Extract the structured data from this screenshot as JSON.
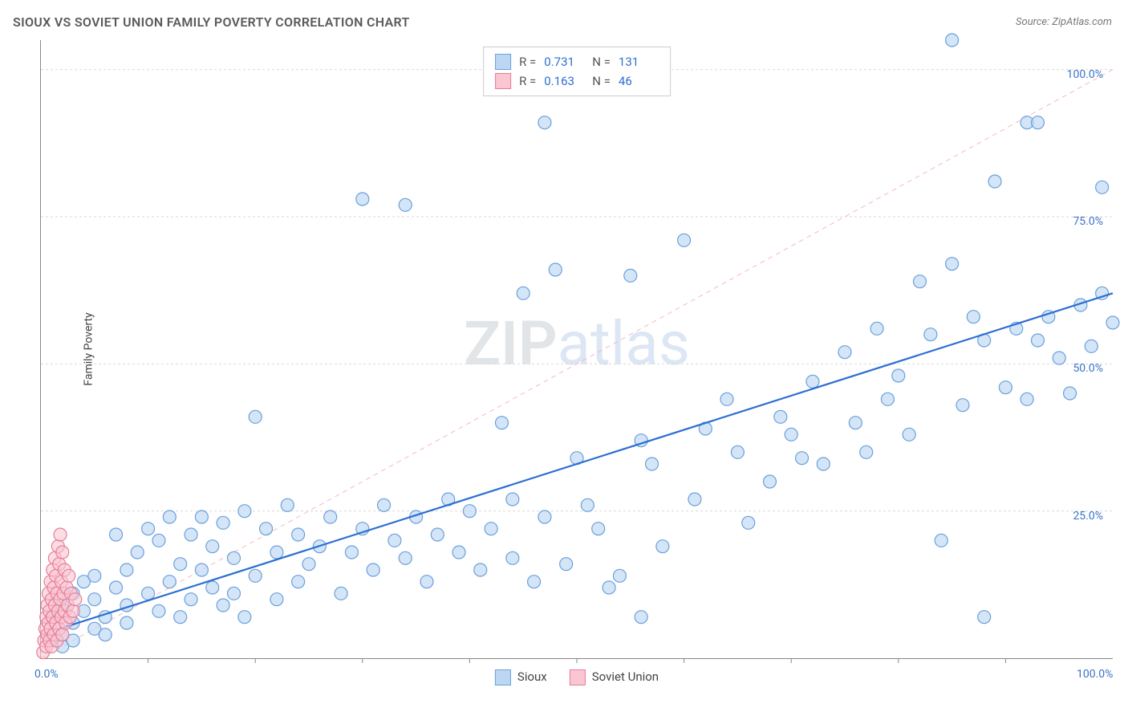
{
  "title": "SIOUX VS SOVIET UNION FAMILY POVERTY CORRELATION CHART",
  "source": "Source: ZipAtlas.com",
  "ylabel": "Family Poverty",
  "watermark_zip": "ZIP",
  "watermark_atlas": "atlas",
  "chart": {
    "type": "scatter",
    "xlim": [
      0,
      100
    ],
    "ylim": [
      0,
      105
    ],
    "x_ticks_minor": [
      10,
      20,
      30,
      40,
      50,
      60,
      70,
      80,
      90
    ],
    "x_ticks_labels": [
      {
        "pos": 0,
        "label": "0.0%"
      },
      {
        "pos": 100,
        "label": "100.0%"
      }
    ],
    "y_gridlines": [
      25,
      50,
      75,
      100
    ],
    "y_ticks_labels": [
      {
        "pos": 25,
        "label": "25.0%"
      },
      {
        "pos": 50,
        "label": "50.0%"
      },
      {
        "pos": 75,
        "label": "75.0%"
      },
      {
        "pos": 100,
        "label": "100.0%"
      }
    ],
    "grid_color": "#d9d9d9",
    "grid_dash": "3,3",
    "diag_color": "#f6b8c2",
    "diag_dash": "6,5",
    "marker_radius": 8,
    "marker_stroke": 1.2,
    "series": [
      {
        "name": "Sioux",
        "fill": "#bcd7f3",
        "stroke": "#6aa0db",
        "fill_opacity": 0.65,
        "R": "0.731",
        "N": "131",
        "regression": {
          "x1": 0,
          "y1": 4,
          "x2": 100,
          "y2": 62,
          "color": "#2c6fd2",
          "width": 2.2
        },
        "points": [
          [
            1,
            3
          ],
          [
            1,
            7
          ],
          [
            2,
            4
          ],
          [
            2,
            9
          ],
          [
            2,
            2
          ],
          [
            3,
            6
          ],
          [
            3,
            11
          ],
          [
            3,
            3
          ],
          [
            4,
            8
          ],
          [
            4,
            13
          ],
          [
            5,
            5
          ],
          [
            5,
            10
          ],
          [
            5,
            14
          ],
          [
            6,
            7
          ],
          [
            6,
            4
          ],
          [
            7,
            12
          ],
          [
            7,
            21
          ],
          [
            8,
            9
          ],
          [
            8,
            6
          ],
          [
            8,
            15
          ],
          [
            9,
            18
          ],
          [
            10,
            11
          ],
          [
            10,
            22
          ],
          [
            11,
            8
          ],
          [
            11,
            20
          ],
          [
            12,
            13
          ],
          [
            12,
            24
          ],
          [
            13,
            16
          ],
          [
            13,
            7
          ],
          [
            14,
            21
          ],
          [
            14,
            10
          ],
          [
            15,
            15
          ],
          [
            15,
            24
          ],
          [
            16,
            12
          ],
          [
            16,
            19
          ],
          [
            17,
            9
          ],
          [
            17,
            23
          ],
          [
            18,
            17
          ],
          [
            18,
            11
          ],
          [
            19,
            25
          ],
          [
            19,
            7
          ],
          [
            20,
            41
          ],
          [
            20,
            14
          ],
          [
            21,
            22
          ],
          [
            22,
            10
          ],
          [
            22,
            18
          ],
          [
            23,
            26
          ],
          [
            24,
            13
          ],
          [
            24,
            21
          ],
          [
            25,
            16
          ],
          [
            26,
            19
          ],
          [
            27,
            24
          ],
          [
            28,
            11
          ],
          [
            29,
            18
          ],
          [
            30,
            78
          ],
          [
            30,
            22
          ],
          [
            31,
            15
          ],
          [
            32,
            26
          ],
          [
            33,
            20
          ],
          [
            34,
            77
          ],
          [
            34,
            17
          ],
          [
            35,
            24
          ],
          [
            36,
            13
          ],
          [
            37,
            21
          ],
          [
            38,
            27
          ],
          [
            39,
            18
          ],
          [
            40,
            25
          ],
          [
            41,
            15
          ],
          [
            42,
            22
          ],
          [
            43,
            40
          ],
          [
            44,
            17
          ],
          [
            44,
            27
          ],
          [
            45,
            62
          ],
          [
            46,
            13
          ],
          [
            47,
            91
          ],
          [
            47,
            24
          ],
          [
            48,
            66
          ],
          [
            49,
            16
          ],
          [
            50,
            34
          ],
          [
            51,
            26
          ],
          [
            52,
            22
          ],
          [
            53,
            12
          ],
          [
            54,
            14
          ],
          [
            55,
            65
          ],
          [
            56,
            37
          ],
          [
            56,
            7
          ],
          [
            57,
            33
          ],
          [
            58,
            19
          ],
          [
            60,
            71
          ],
          [
            61,
            27
          ],
          [
            62,
            39
          ],
          [
            64,
            44
          ],
          [
            65,
            35
          ],
          [
            66,
            23
          ],
          [
            68,
            30
          ],
          [
            69,
            41
          ],
          [
            70,
            38
          ],
          [
            71,
            34
          ],
          [
            72,
            47
          ],
          [
            73,
            33
          ],
          [
            75,
            52
          ],
          [
            76,
            40
          ],
          [
            77,
            35
          ],
          [
            78,
            56
          ],
          [
            79,
            44
          ],
          [
            80,
            48
          ],
          [
            81,
            38
          ],
          [
            82,
            64
          ],
          [
            83,
            55
          ],
          [
            84,
            20
          ],
          [
            85,
            105
          ],
          [
            85,
            67
          ],
          [
            86,
            43
          ],
          [
            87,
            58
          ],
          [
            88,
            7
          ],
          [
            88,
            54
          ],
          [
            89,
            81
          ],
          [
            90,
            46
          ],
          [
            91,
            56
          ],
          [
            92,
            44
          ],
          [
            92,
            91
          ],
          [
            93,
            91
          ],
          [
            93,
            54
          ],
          [
            94,
            58
          ],
          [
            95,
            51
          ],
          [
            96,
            45
          ],
          [
            97,
            60
          ],
          [
            98,
            53
          ],
          [
            99,
            80
          ],
          [
            99,
            62
          ],
          [
            100,
            57
          ]
        ]
      },
      {
        "name": "Soviet Union",
        "fill": "#f9c6d2",
        "stroke": "#e87d9a",
        "fill_opacity": 0.6,
        "R": "0.163",
        "N": "46",
        "regression": null,
        "points": [
          [
            0.2,
            1
          ],
          [
            0.3,
            3
          ],
          [
            0.4,
            5
          ],
          [
            0.5,
            2
          ],
          [
            0.5,
            7
          ],
          [
            0.6,
            4
          ],
          [
            0.6,
            9
          ],
          [
            0.7,
            6
          ],
          [
            0.7,
            11
          ],
          [
            0.8,
            3
          ],
          [
            0.8,
            8
          ],
          [
            0.9,
            5
          ],
          [
            0.9,
            13
          ],
          [
            1.0,
            2
          ],
          [
            1.0,
            10
          ],
          [
            1.1,
            7
          ],
          [
            1.1,
            15
          ],
          [
            1.2,
            4
          ],
          [
            1.2,
            12
          ],
          [
            1.3,
            9
          ],
          [
            1.3,
            17
          ],
          [
            1.4,
            6
          ],
          [
            1.4,
            14
          ],
          [
            1.5,
            3
          ],
          [
            1.5,
            11
          ],
          [
            1.6,
            8
          ],
          [
            1.6,
            19
          ],
          [
            1.7,
            5
          ],
          [
            1.7,
            16
          ],
          [
            1.8,
            10
          ],
          [
            1.8,
            21
          ],
          [
            1.9,
            7
          ],
          [
            1.9,
            13
          ],
          [
            2.0,
            4
          ],
          [
            2.0,
            18
          ],
          [
            2.1,
            11
          ],
          [
            2.2,
            8
          ],
          [
            2.2,
            15
          ],
          [
            2.3,
            6
          ],
          [
            2.4,
            12
          ],
          [
            2.5,
            9
          ],
          [
            2.6,
            14
          ],
          [
            2.7,
            7
          ],
          [
            2.8,
            11
          ],
          [
            3.0,
            8
          ],
          [
            3.2,
            10
          ]
        ]
      }
    ],
    "legend_top": [
      {
        "swatch_fill": "#bcd7f3",
        "swatch_stroke": "#6aa0db",
        "r_label": "R =",
        "r_val": "0.731",
        "n_label": "N =",
        "n_val": "131"
      },
      {
        "swatch_fill": "#f9c6d2",
        "swatch_stroke": "#e87d9a",
        "r_label": "R =",
        "r_val": "0.163",
        "n_label": "N =",
        "n_val": "46"
      }
    ],
    "legend_bottom": [
      {
        "swatch_fill": "#bcd7f3",
        "swatch_stroke": "#6aa0db",
        "label": "Sioux"
      },
      {
        "swatch_fill": "#f9c6d2",
        "swatch_stroke": "#e87d9a",
        "label": "Soviet Union"
      }
    ]
  }
}
